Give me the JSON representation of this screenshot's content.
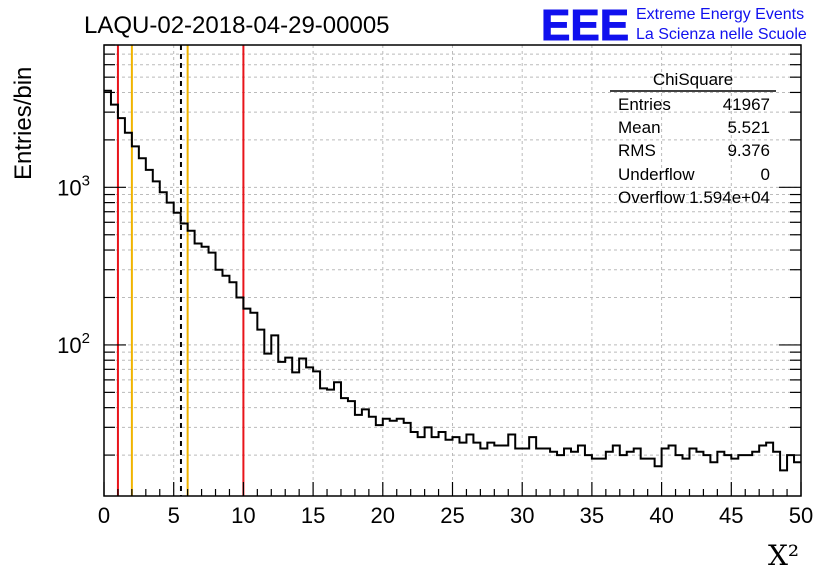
{
  "header": {
    "run_title": "LAQU-02-2018-04-29-00005",
    "logo_text": "EEE",
    "logo_line1": "Extreme Energy Events",
    "logo_line2": "La Scienza nelle Scuole"
  },
  "stats_box": {
    "title": "ChiSquare",
    "rows": [
      {
        "label": "Entries",
        "value": "41967"
      },
      {
        "label": "Mean",
        "value": "5.521"
      },
      {
        "label": "RMS",
        "value": "9.376"
      },
      {
        "label": "Underflow",
        "value": "0"
      },
      {
        "label": "Overflow",
        "value": "1.594e+04"
      }
    ]
  },
  "colors": {
    "red_line": "#e8141a",
    "orange_line": "#f0b400",
    "logo_blue": "#1010ee",
    "grid": "#bbbbbb",
    "histogram": "#000000"
  },
  "chart_data": {
    "type": "histogram",
    "title": "LAQU-02-2018-04-29-00005",
    "xlabel": "X²",
    "ylabel": "Entries/bin",
    "xlim": [
      0,
      50
    ],
    "ylim": [
      11,
      8000
    ],
    "y_scale": "log",
    "grid": true,
    "x_ticks": [
      0,
      5,
      10,
      15,
      20,
      25,
      30,
      35,
      40,
      45,
      50
    ],
    "x_tick_labels": [
      "0",
      "5",
      "10",
      "15",
      "20",
      "25",
      "30",
      "35",
      "40",
      "45",
      "50"
    ],
    "y_major_ticks": [
      {
        "value": 1000,
        "base": "10",
        "exp": "3"
      },
      {
        "value": 100,
        "base": "10",
        "exp": "2"
      }
    ],
    "bin_width": 0.5,
    "bin_edges_start": 0,
    "values": [
      4100,
      3350,
      2750,
      2220,
      1820,
      1530,
      1290,
      1090,
      930,
      800,
      690,
      590,
      530,
      440,
      420,
      385,
      300,
      275,
      250,
      200,
      170,
      160,
      125,
      88,
      115,
      78,
      83,
      67,
      82,
      72,
      68,
      53,
      52,
      58,
      46,
      44,
      36,
      39,
      35,
      31,
      34,
      33,
      34,
      32,
      28,
      26,
      30,
      26,
      28,
      25,
      26,
      24,
      27,
      24,
      22,
      24,
      23,
      23,
      27,
      22,
      22,
      26,
      22,
      22,
      21,
      20,
      22,
      21,
      23,
      20,
      19,
      19,
      21,
      23,
      20,
      21,
      22,
      19,
      19,
      17,
      22,
      23,
      20,
      19,
      22,
      21,
      20,
      18,
      21,
      20,
      19,
      20,
      20,
      21,
      23,
      24,
      21,
      16,
      20,
      18
    ],
    "vertical_lines": [
      {
        "x": 1.0,
        "color": "#e8141a",
        "style": "solid"
      },
      {
        "x": 2.0,
        "color": "#f0b400",
        "style": "solid"
      },
      {
        "x": 5.521,
        "color": "#000000",
        "style": "dashed"
      },
      {
        "x": 6.0,
        "color": "#f0b400",
        "style": "solid"
      },
      {
        "x": 10.0,
        "color": "#e8141a",
        "style": "solid"
      }
    ]
  }
}
